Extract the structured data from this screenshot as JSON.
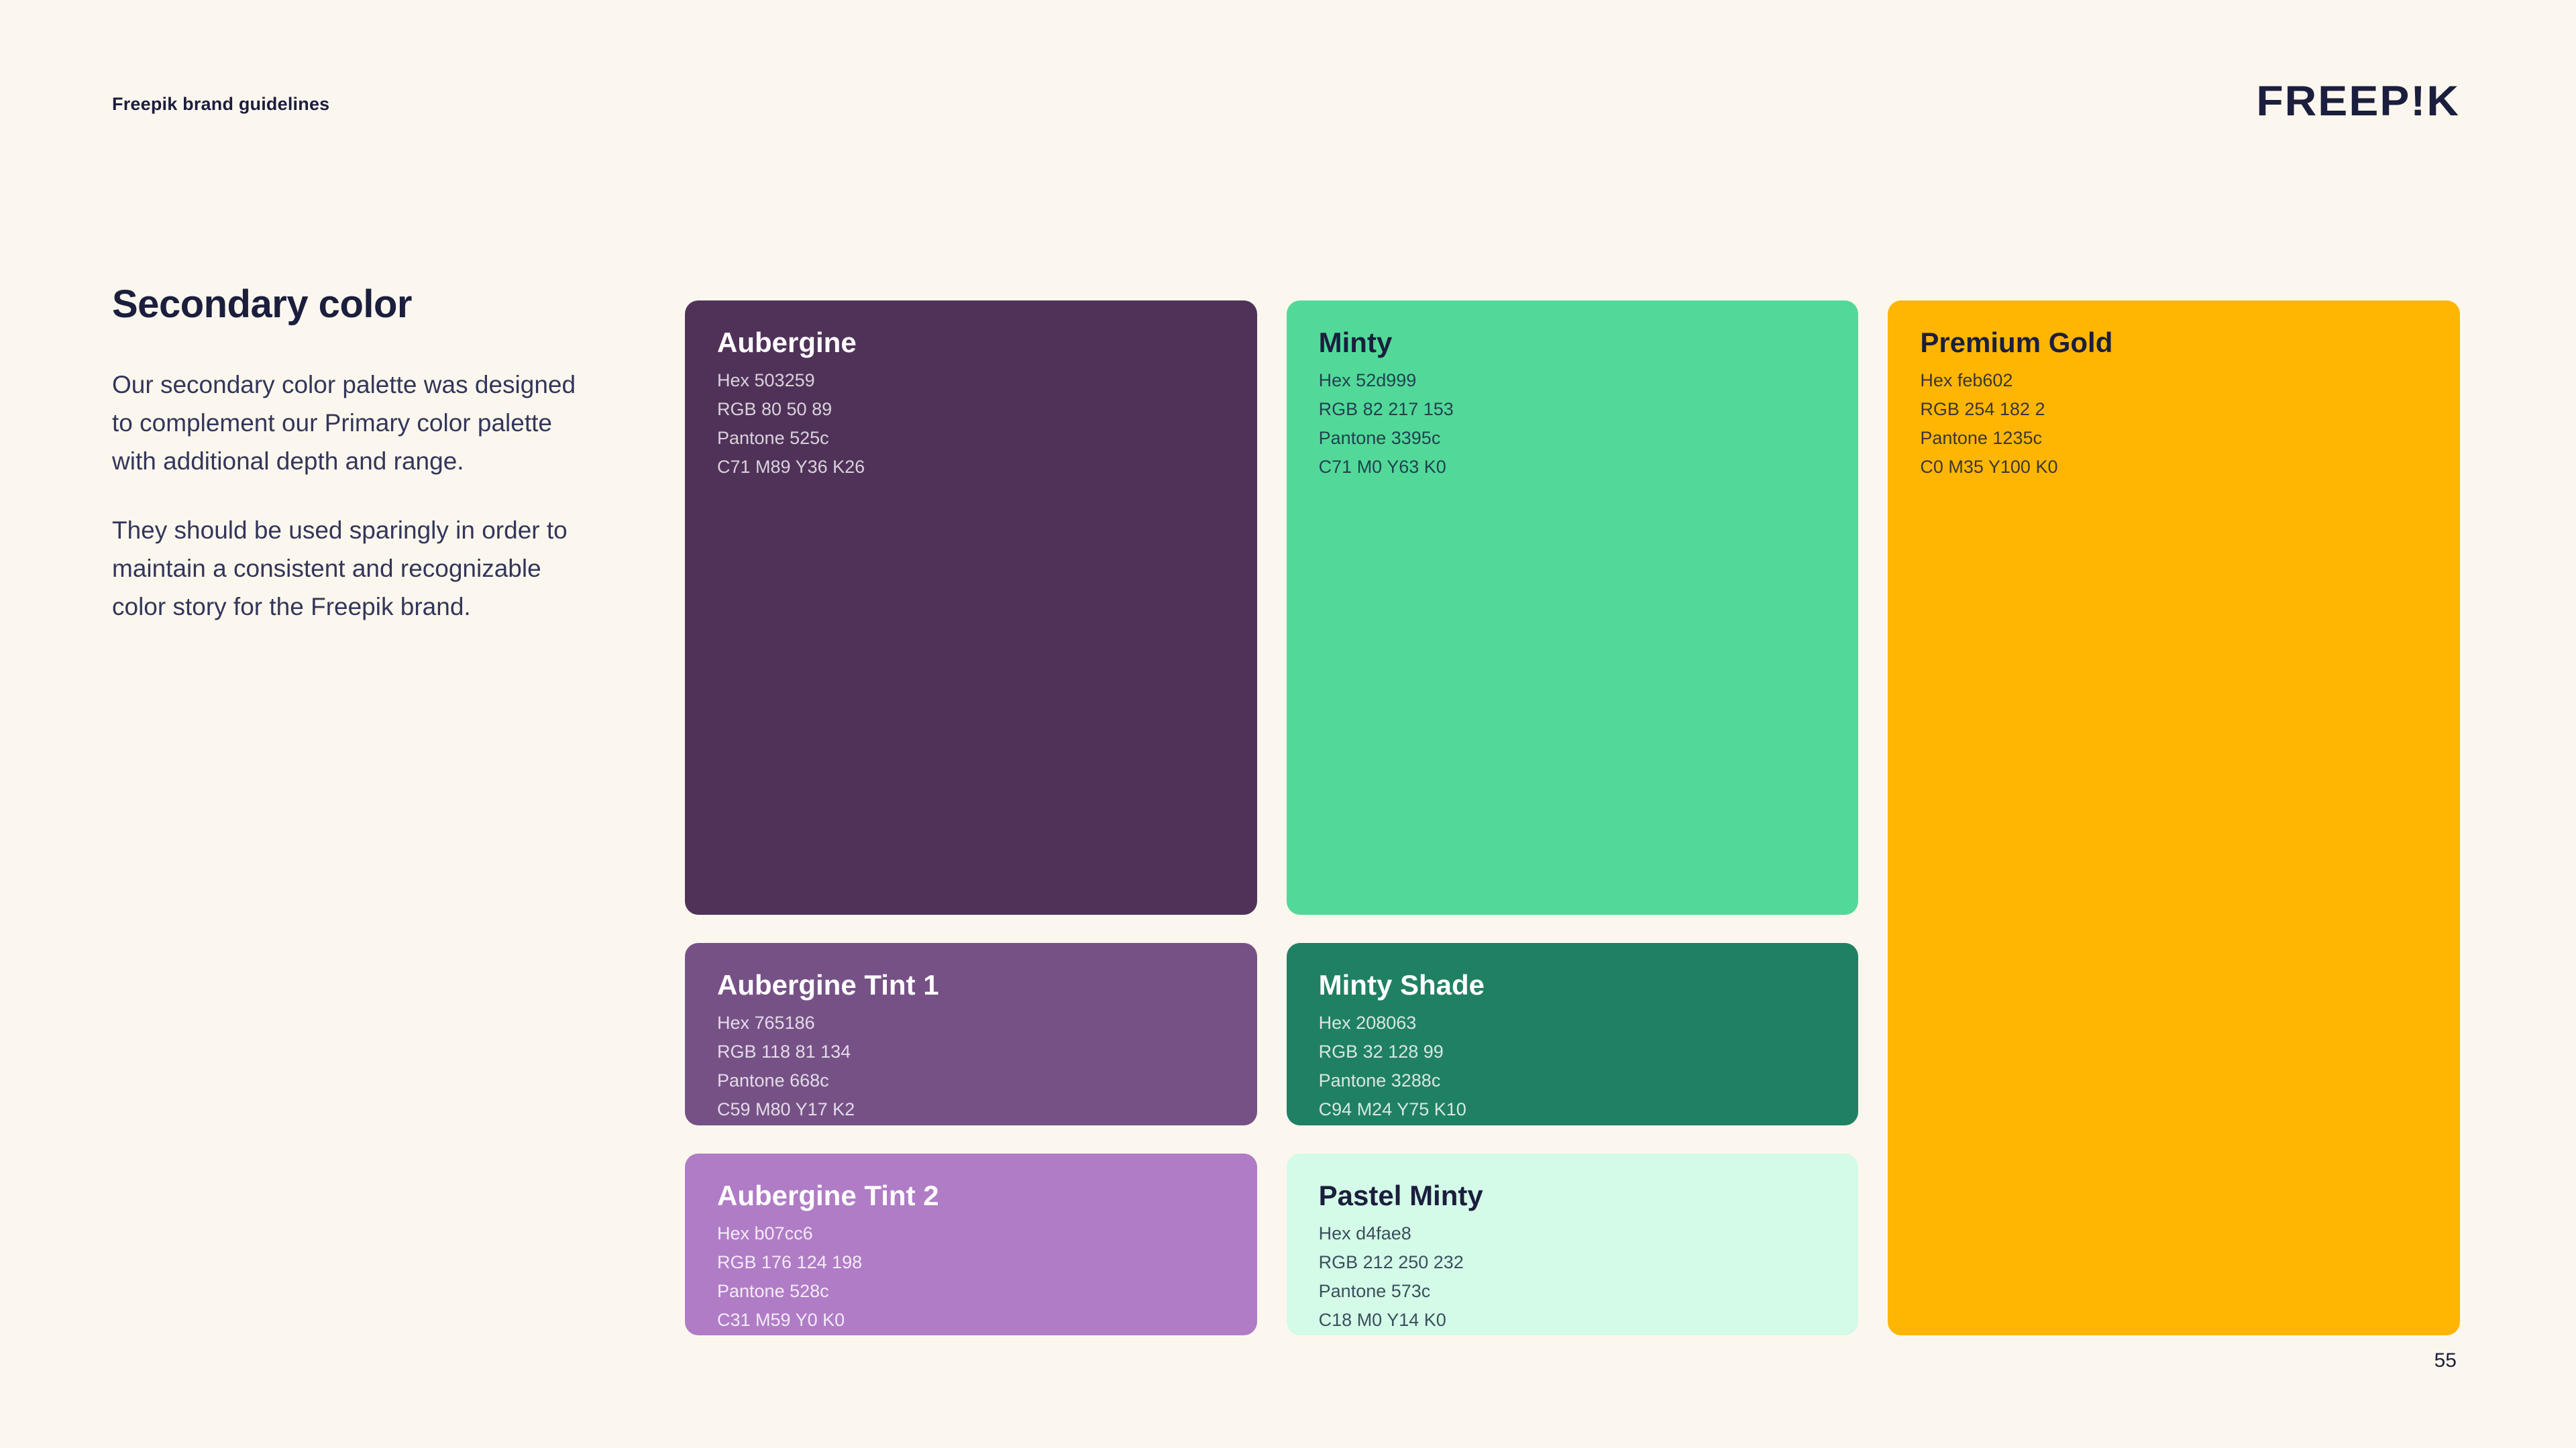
{
  "colors": {
    "background": "#fcf7ee",
    "text": "#1b1e3d",
    "body_text": "#33365a"
  },
  "header": {
    "label": "Freepik brand guidelines",
    "logo": "FREEP!K"
  },
  "content": {
    "title": "Secondary color",
    "paragraphs": [
      "Our secondary color palette was designed to complement our Primary color palette with additional depth and range.",
      "They should be used sparingly in order to maintain a consistent and recognizable color story for the Freepik brand."
    ]
  },
  "footer": {
    "page_number": "55"
  },
  "swatches": [
    {
      "name": "Aubergine",
      "hex": "Hex 503259",
      "rgb": "RGB 80 50 89",
      "pantone": "Pantone 525c",
      "cmyk": "C71 M89 Y36 K26",
      "bg": "#503259",
      "fg": "#ffffff",
      "fg_muted": "rgba(255,255,255,0.78)"
    },
    {
      "name": "Minty",
      "hex": "Hex 52d999",
      "rgb": "RGB 82 217 153",
      "pantone": "Pantone 3395c",
      "cmyk": "C71 M0 Y63 K0",
      "bg": "#52d999",
      "fg": "#1b1e3d",
      "fg_muted": "rgba(22,32,62,0.82)"
    },
    {
      "name": "Premium Gold",
      "hex": "Hex feb602",
      "rgb": "RGB 254 182 2",
      "pantone": "Pantone 1235c",
      "cmyk": "C0 M35 Y100 K0",
      "bg": "#feb602",
      "fg": "#1b1e3d",
      "fg_muted": "rgba(27,30,61,0.85)"
    },
    {
      "name": "Aubergine Tint 1",
      "hex": "Hex 765186",
      "rgb": "RGB 118 81 134",
      "pantone": "Pantone 668c",
      "cmyk": "C59 M80 Y17 K2",
      "bg": "#765186",
      "fg": "#ffffff",
      "fg_muted": "rgba(255,255,255,0.8)"
    },
    {
      "name": "Minty Shade",
      "hex": "Hex 208063",
      "rgb": "RGB 32 128 99",
      "pantone": "Pantone 3288c",
      "cmyk": "C94 M24 Y75 K10",
      "bg": "#208063",
      "fg": "#ffffff",
      "fg_muted": "rgba(255,255,255,0.82)"
    },
    {
      "name": "Aubergine Tint 2",
      "hex": "Hex b07cc6",
      "rgb": "RGB 176 124 198",
      "pantone": "Pantone 528c",
      "cmyk": "C31 M59 Y0 K0",
      "bg": "#b07cc6",
      "fg": "#ffffff",
      "fg_muted": "rgba(255,255,255,0.85)"
    },
    {
      "name": "Pastel Minty",
      "hex": "Hex d4fae8",
      "rgb": "RGB 212 250 232",
      "pantone": "Pantone 573c",
      "cmyk": "C18 M0 Y14 K0",
      "bg": "#d4fae8",
      "fg": "#1b1e3d",
      "fg_muted": "rgba(25,40,60,0.82)"
    }
  ]
}
